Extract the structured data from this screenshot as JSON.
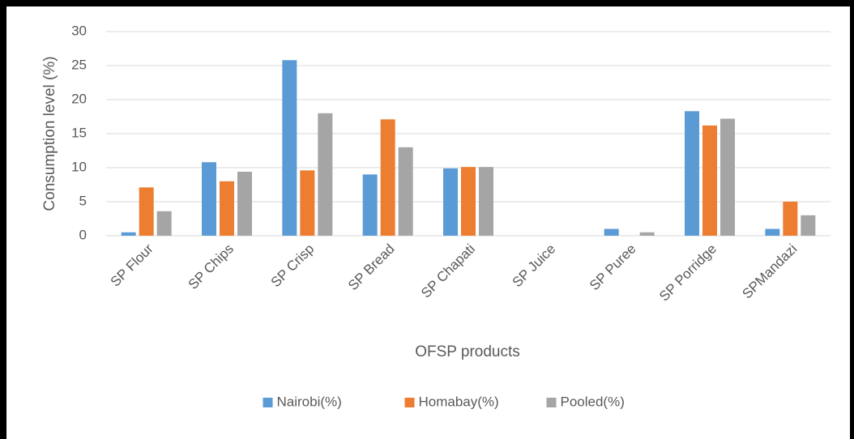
{
  "chart_data": {
    "type": "bar",
    "xlabel": "OFSP products",
    "ylabel": "Consumption level (%)",
    "categories": [
      "SP Flour",
      "SP Chips",
      "SP Crisp",
      "SP Bread",
      "SP Chapati",
      "SP Juice",
      "SP Puree",
      "SP Porridge",
      "SPMandazi"
    ],
    "series": [
      {
        "name": "Nairobi(%)",
        "color": "#5b9bd5",
        "values": [
          0.5,
          10.8,
          25.8,
          9.0,
          9.9,
          0,
          1.0,
          18.3,
          1.0
        ]
      },
      {
        "name": "Homabay(%)",
        "color": "#ed7d31",
        "values": [
          7.1,
          8.0,
          9.6,
          17.1,
          10.1,
          0,
          0,
          16.2,
          5.0
        ]
      },
      {
        "name": "Pooled(%)",
        "color": "#a5a5a5",
        "values": [
          3.6,
          9.4,
          18.0,
          13.0,
          10.1,
          0,
          0.5,
          17.2,
          3.0
        ]
      }
    ],
    "ylim": [
      0,
      30
    ],
    "yticks": [
      0,
      5,
      10,
      15,
      20,
      25,
      30
    ],
    "grid": true,
    "legend": "bottom"
  }
}
